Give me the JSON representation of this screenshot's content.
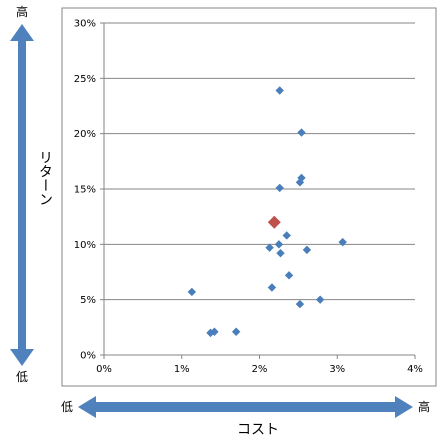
{
  "chart_data": {
    "type": "scatter",
    "xlabel": "コスト",
    "ylabel": "リターン",
    "x_low_label": "低",
    "x_high_label": "高",
    "y_low_label": "低",
    "y_high_label": "高",
    "xlim": [
      0,
      4
    ],
    "ylim": [
      0,
      30
    ],
    "x_tick_labels": [
      "0%",
      "1%",
      "2%",
      "3%",
      "4%"
    ],
    "y_tick_labels": [
      "0%",
      "5%",
      "10%",
      "15%",
      "20%",
      "25%",
      "30%"
    ],
    "grid": true,
    "points": [
      {
        "x": 1.13,
        "y": 5.7
      },
      {
        "x": 1.37,
        "y": 2.0
      },
      {
        "x": 1.42,
        "y": 2.1
      },
      {
        "x": 1.7,
        "y": 2.1
      },
      {
        "x": 2.13,
        "y": 9.7
      },
      {
        "x": 2.16,
        "y": 6.1
      },
      {
        "x": 2.25,
        "y": 10.0
      },
      {
        "x": 2.26,
        "y": 15.1
      },
      {
        "x": 2.26,
        "y": 23.9
      },
      {
        "x": 2.27,
        "y": 9.2
      },
      {
        "x": 2.35,
        "y": 10.8
      },
      {
        "x": 2.38,
        "y": 7.2
      },
      {
        "x": 2.52,
        "y": 4.6
      },
      {
        "x": 2.52,
        "y": 15.6
      },
      {
        "x": 2.54,
        "y": 16.0
      },
      {
        "x": 2.54,
        "y": 20.1
      },
      {
        "x": 2.61,
        "y": 9.5
      },
      {
        "x": 2.78,
        "y": 5.0
      },
      {
        "x": 3.07,
        "y": 10.2
      }
    ],
    "highlight": {
      "x": 2.19,
      "y": 12.0
    },
    "colors": {
      "point": "#4a7ebb",
      "highlight": "#c0504d",
      "arrow": "#4f81bd",
      "grid": "#868686"
    }
  }
}
